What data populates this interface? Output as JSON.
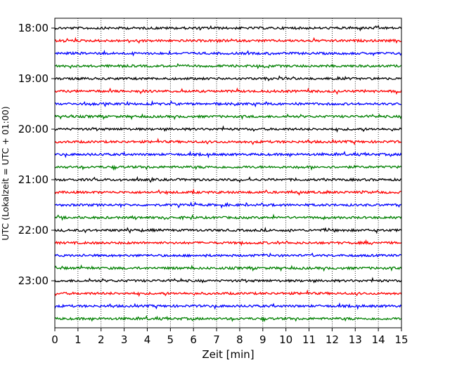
{
  "chart_data": {
    "type": "line",
    "title": "",
    "xlabel": "Zeit  [min]",
    "ylabel": "UTC (Lokalzeit = UTC + 01:00)",
    "xlim": [
      0,
      15
    ],
    "x_ticks": [
      "0",
      "1",
      "2",
      "3",
      "4",
      "5",
      "6",
      "7",
      "8",
      "9",
      "10",
      "11",
      "12",
      "13",
      "14",
      "15"
    ],
    "y_ticks": [
      "18:00",
      "19:00",
      "20:00",
      "21:00",
      "22:00",
      "23:00"
    ],
    "grid": true,
    "trace_start": "18:00",
    "trace_interval_minutes": 15,
    "trace_count": 24,
    "trace_colors": [
      "#000000",
      "#ff0000",
      "#0000ff",
      "#008000"
    ]
  }
}
